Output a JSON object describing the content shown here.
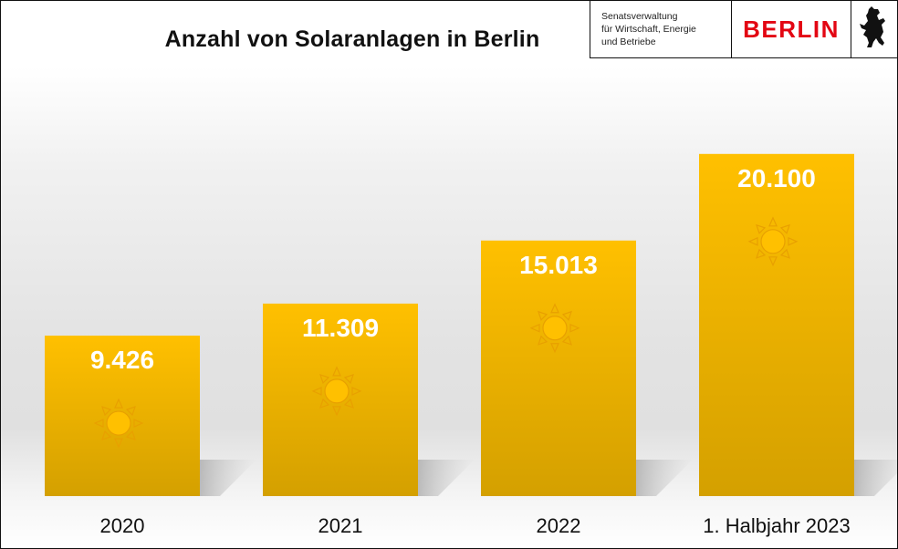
{
  "title": "Anzahl von Solaranlagen in Berlin",
  "logo": {
    "department_lines": [
      "Senatsverwaltung",
      "für Wirtschaft, Energie",
      "und Betriebe"
    ],
    "city": "BERLIN",
    "emblem_icon": "bear-icon"
  },
  "colors": {
    "bar_top": "#FFC000",
    "bar_bottom": "#D4A000",
    "label": "#FFFFFF",
    "brand_red": "#E30613"
  },
  "chart_data": {
    "type": "bar",
    "title": "Anzahl von Solaranlagen in Berlin",
    "categories": [
      "2020",
      "2021",
      "2022",
      "1. Halbjahr 2023"
    ],
    "values": [
      9426,
      11309,
      15013,
      20100
    ],
    "value_labels": [
      "9.426",
      "11.309",
      "15.013",
      "20.100"
    ],
    "xlabel": "",
    "ylabel": "",
    "ylim": [
      0,
      24000
    ],
    "grid": false,
    "legend": "none",
    "bar_icon": "sun-icon"
  }
}
